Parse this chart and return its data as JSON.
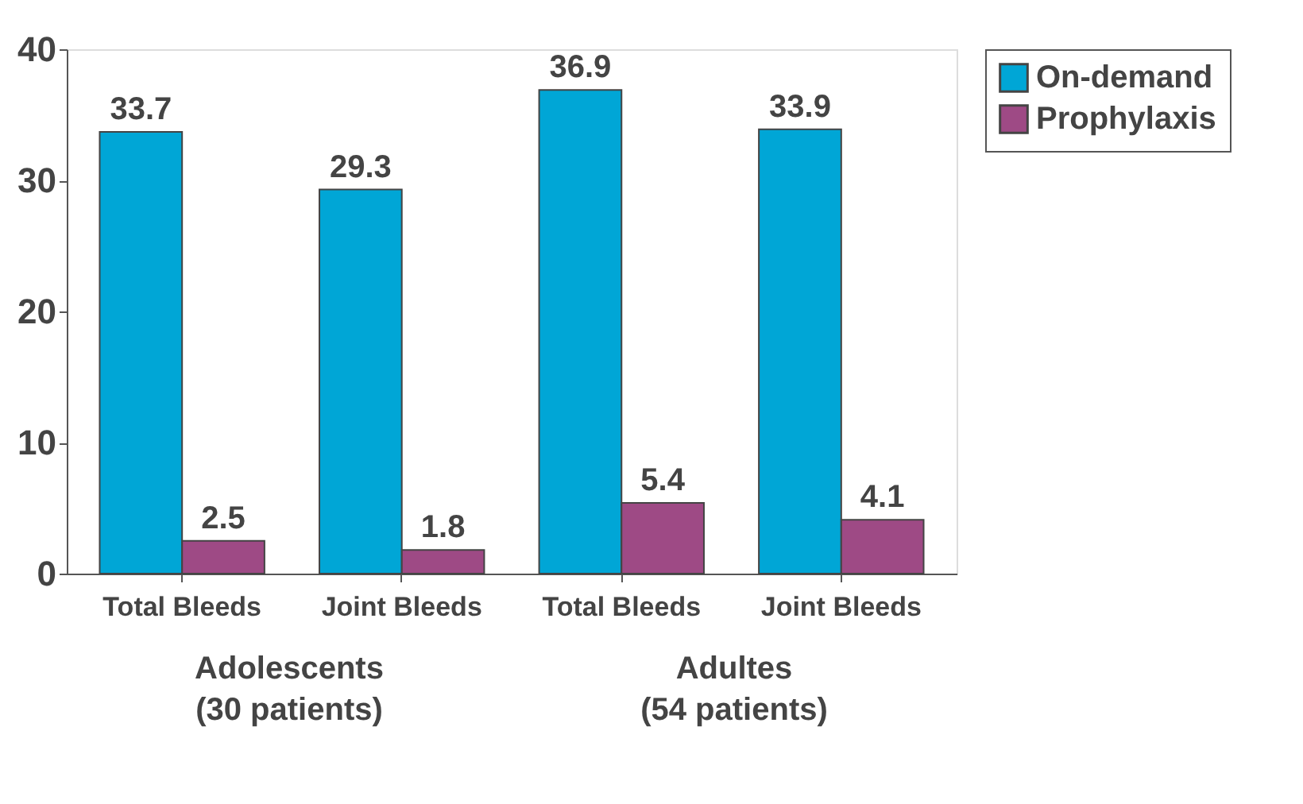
{
  "chart_data": {
    "type": "bar",
    "categories": [
      "Total Bleeds",
      "Joint Bleeds",
      "Total Bleeds",
      "Joint Bleeds"
    ],
    "series": [
      {
        "name": "On-demand",
        "color": "#00a6d6",
        "values": [
          33.7,
          29.3,
          36.9,
          33.9
        ]
      },
      {
        "name": "Prophylaxis",
        "color": "#9e4a85",
        "values": [
          2.5,
          1.8,
          5.4,
          4.1
        ]
      }
    ],
    "ylim": [
      0,
      40
    ],
    "yticks": [
      0,
      10,
      20,
      30,
      40
    ],
    "data_labels": true,
    "grid": false,
    "legend": "right",
    "annotations": [
      "Adolescents\n(30 patients)",
      "Adultes\n(54 patients)"
    ]
  }
}
